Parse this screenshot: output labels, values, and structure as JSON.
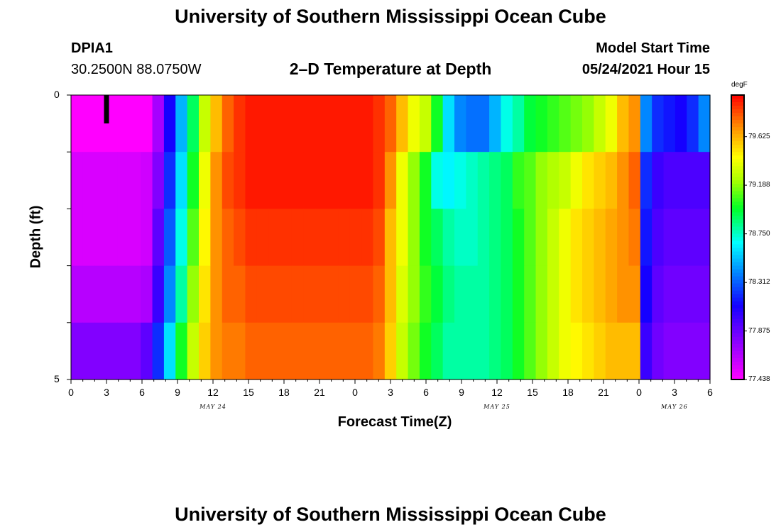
{
  "header": {
    "title_top": "University of Southern Mississippi Ocean Cube",
    "title_bottom": "University of Southern Mississippi Ocean Cube",
    "station": "DPIA1",
    "coords": "30.2500N  88.0750W",
    "plot_title": "2–D Temperature at Depth",
    "model_start_label": "Model Start Time",
    "model_start_value": "05/24/2021 Hour 15"
  },
  "chart_data": {
    "type": "heatmap",
    "title": "2–D Temperature at Depth",
    "xlabel": "Forecast Time(Z)",
    "ylabel": "Depth (ft)",
    "ylim": [
      0,
      5
    ],
    "y_ticks": [
      "0",
      "5"
    ],
    "x_ticks": [
      "0",
      "3",
      "6",
      "9",
      "12",
      "15",
      "18",
      "21",
      "0",
      "3",
      "6",
      "9",
      "12",
      "15",
      "18",
      "21",
      "0",
      "3",
      "6"
    ],
    "date_labels": [
      "MAY 24",
      "MAY 25",
      "MAY 26"
    ],
    "x_hours": [
      0,
      1,
      2,
      3,
      4,
      5,
      6,
      7,
      8,
      9,
      10,
      11,
      12,
      13,
      14,
      15,
      16,
      17,
      18,
      19,
      20,
      21,
      22,
      23,
      24,
      25,
      26,
      27,
      28,
      29,
      30,
      31,
      32,
      33,
      34,
      35,
      36,
      37,
      38,
      39,
      40,
      41,
      42,
      43,
      44,
      45,
      46,
      47,
      48,
      49,
      50,
      51,
      52,
      53,
      54
    ],
    "depths_ft": [
      0.5,
      1.5,
      2.5,
      3.5,
      4.5
    ],
    "values": [
      [
        77.4,
        77.4,
        77.4,
        77.4,
        77.4,
        77.4,
        77.42,
        77.7,
        78.1,
        78.5,
        78.9,
        79.3,
        79.6,
        79.8,
        79.9,
        79.95,
        79.95,
        79.95,
        79.95,
        79.95,
        79.95,
        79.95,
        79.95,
        79.95,
        79.95,
        79.95,
        79.9,
        79.8,
        79.6,
        79.4,
        79.3,
        79.0,
        78.6,
        78.4,
        78.35,
        78.35,
        78.5,
        78.7,
        78.8,
        78.95,
        79.0,
        79.05,
        79.1,
        79.15,
        79.2,
        79.3,
        79.4,
        79.6,
        79.7,
        78.4,
        78.2,
        78.15,
        78.1,
        78.2,
        78.4
      ],
      [
        77.55,
        77.55,
        77.55,
        77.55,
        77.55,
        77.55,
        77.58,
        77.8,
        78.2,
        78.6,
        79.0,
        79.4,
        79.7,
        79.85,
        79.9,
        79.95,
        79.95,
        79.95,
        79.95,
        79.95,
        79.95,
        79.95,
        79.95,
        79.95,
        79.95,
        79.95,
        79.9,
        79.7,
        79.4,
        79.2,
        79.0,
        78.7,
        78.65,
        78.7,
        78.75,
        78.8,
        78.85,
        78.9,
        79.05,
        79.1,
        79.2,
        79.25,
        79.3,
        79.4,
        79.5,
        79.55,
        79.6,
        79.7,
        79.8,
        78.2,
        78.0,
        77.95,
        77.95,
        77.95,
        77.95
      ],
      [
        77.55,
        77.55,
        77.55,
        77.55,
        77.55,
        77.55,
        77.58,
        77.9,
        78.3,
        78.7,
        79.1,
        79.45,
        79.7,
        79.8,
        79.85,
        79.9,
        79.9,
        79.9,
        79.9,
        79.9,
        79.9,
        79.9,
        79.9,
        79.9,
        79.9,
        79.9,
        79.85,
        79.6,
        79.4,
        79.2,
        79.0,
        78.9,
        78.8,
        78.75,
        78.75,
        78.8,
        78.85,
        78.9,
        79.0,
        79.1,
        79.2,
        79.3,
        79.4,
        79.5,
        79.55,
        79.6,
        79.65,
        79.7,
        79.75,
        78.15,
        77.95,
        77.9,
        77.9,
        77.9,
        77.9
      ],
      [
        77.65,
        77.65,
        77.65,
        77.65,
        77.65,
        77.65,
        77.68,
        78.0,
        78.4,
        78.8,
        79.2,
        79.5,
        79.7,
        79.8,
        79.8,
        79.85,
        79.85,
        79.85,
        79.85,
        79.85,
        79.85,
        79.85,
        79.85,
        79.85,
        79.85,
        79.85,
        79.8,
        79.6,
        79.35,
        79.2,
        79.05,
        78.95,
        78.85,
        78.8,
        78.8,
        78.8,
        78.85,
        78.9,
        79.0,
        79.1,
        79.2,
        79.3,
        79.4,
        79.5,
        79.55,
        79.6,
        79.65,
        79.7,
        79.7,
        78.1,
        77.9,
        77.85,
        77.85,
        77.85,
        77.85
      ],
      [
        77.8,
        77.8,
        77.8,
        77.8,
        77.8,
        77.8,
        77.9,
        78.2,
        78.6,
        79.0,
        79.3,
        79.55,
        79.7,
        79.75,
        79.75,
        79.8,
        79.8,
        79.8,
        79.8,
        79.8,
        79.8,
        79.8,
        79.8,
        79.8,
        79.8,
        79.8,
        79.75,
        79.55,
        79.3,
        79.15,
        79.0,
        78.9,
        78.8,
        78.8,
        78.8,
        78.8,
        78.85,
        78.9,
        79.0,
        79.1,
        79.2,
        79.3,
        79.4,
        79.45,
        79.5,
        79.55,
        79.6,
        79.6,
        79.6,
        78.0,
        77.85,
        77.8,
        77.8,
        77.8,
        77.8
      ]
    ],
    "colorbar": {
      "unit": "degF",
      "labels": [
        "79.625",
        "79.188",
        "78.750",
        "78.312",
        "77.875",
        "77.438"
      ],
      "min": 77.438,
      "max": 80.0
    },
    "current_time_marker_hour": 3
  }
}
